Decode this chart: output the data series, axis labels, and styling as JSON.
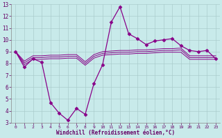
{
  "xlabel": "Windchill (Refroidissement éolien,°C)",
  "xlim": [
    -0.5,
    23.5
  ],
  "ylim": [
    3,
    13
  ],
  "xticks": [
    0,
    1,
    2,
    3,
    4,
    5,
    6,
    7,
    8,
    9,
    10,
    11,
    12,
    13,
    14,
    15,
    16,
    17,
    18,
    19,
    20,
    21,
    22,
    23
  ],
  "yticks": [
    3,
    4,
    5,
    6,
    7,
    8,
    9,
    10,
    11,
    12,
    13
  ],
  "bg_color": "#c8eaea",
  "line_color": "#880088",
  "grid_color": "#aacccc",
  "line1_x": [
    0,
    1,
    2,
    3,
    4,
    5,
    6,
    7,
    8,
    9,
    10,
    11,
    12,
    13,
    14,
    15,
    16,
    17,
    18,
    19,
    20,
    21,
    22,
    23
  ],
  "line1_y": [
    9.0,
    7.7,
    8.4,
    8.1,
    4.7,
    3.8,
    3.2,
    4.2,
    3.7,
    6.3,
    7.9,
    11.5,
    12.8,
    10.5,
    10.1,
    9.6,
    9.9,
    10.0,
    10.1,
    9.5,
    9.1,
    9.0,
    9.1,
    8.4
  ],
  "line2_x": [
    0,
    1,
    2,
    3,
    4,
    5,
    6,
    7,
    8,
    9,
    10,
    11,
    12,
    13,
    14,
    15,
    16,
    17,
    18,
    19,
    20,
    21,
    22,
    23
  ],
  "line2_y": [
    9.0,
    7.9,
    8.35,
    8.35,
    8.4,
    8.4,
    8.45,
    8.45,
    7.85,
    8.45,
    8.7,
    8.75,
    8.8,
    8.8,
    8.85,
    8.85,
    8.9,
    8.95,
    8.95,
    8.95,
    8.35,
    8.35,
    8.35,
    8.35
  ],
  "line3_x": [
    0,
    1,
    2,
    3,
    4,
    5,
    6,
    7,
    8,
    9,
    10,
    11,
    12,
    13,
    14,
    15,
    16,
    17,
    18,
    19,
    20,
    21,
    22,
    23
  ],
  "line3_y": [
    9.0,
    8.05,
    8.5,
    8.5,
    8.55,
    8.55,
    8.6,
    8.6,
    8.0,
    8.6,
    8.85,
    8.9,
    8.95,
    8.95,
    9.0,
    9.0,
    9.05,
    9.1,
    9.1,
    9.15,
    8.5,
    8.5,
    8.5,
    8.5
  ],
  "line4_x": [
    0,
    1,
    2,
    3,
    4,
    5,
    6,
    7,
    8,
    9,
    10,
    11,
    12,
    13,
    14,
    15,
    16,
    17,
    18,
    19,
    20,
    21,
    22,
    23
  ],
  "line4_y": [
    9.0,
    8.2,
    8.65,
    8.65,
    8.7,
    8.7,
    8.75,
    8.75,
    8.15,
    8.75,
    9.0,
    9.05,
    9.1,
    9.1,
    9.15,
    9.15,
    9.2,
    9.25,
    9.25,
    9.3,
    8.65,
    8.65,
    8.65,
    8.65
  ]
}
